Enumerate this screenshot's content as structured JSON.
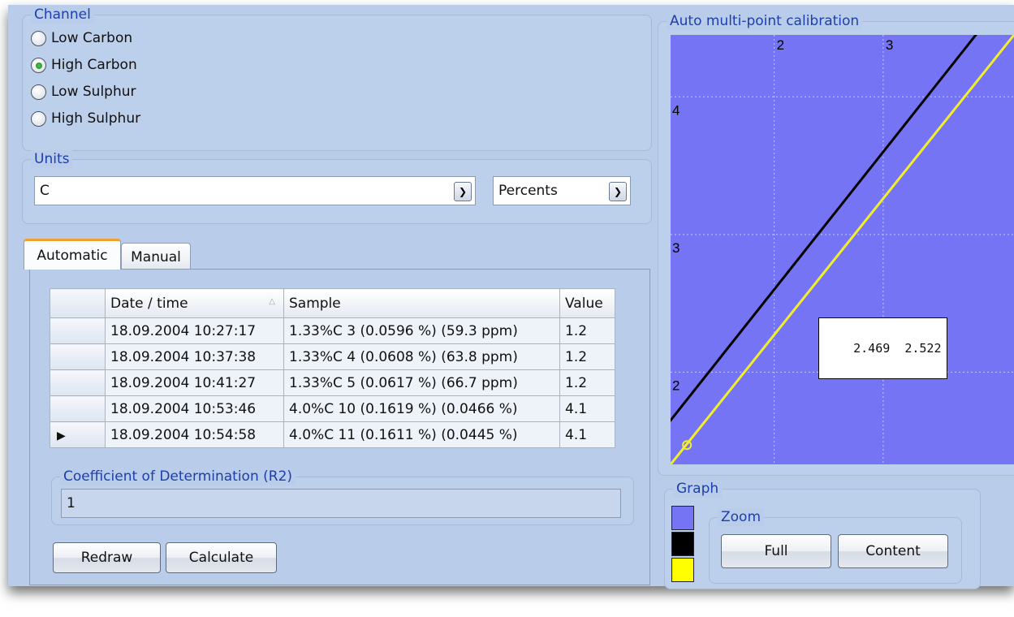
{
  "channel": {
    "title": "Channel",
    "options": [
      {
        "label": "Low Carbon",
        "checked": false
      },
      {
        "label": "High Carbon",
        "checked": true
      },
      {
        "label": "Low Sulphur",
        "checked": false
      },
      {
        "label": "High Sulphur",
        "checked": false
      }
    ]
  },
  "units": {
    "title": "Units",
    "element_value": "C",
    "unit_value": "Percents"
  },
  "tabs": [
    {
      "label": "Automatic",
      "active": true
    },
    {
      "label": "Manual",
      "active": false
    }
  ],
  "table": {
    "columns": [
      "Date / time",
      "Sample",
      "Value"
    ],
    "rows": [
      {
        "datetime": "18.09.2004 10:27:17",
        "sample": "1.33%C 3 (0.0596 %) (59.3 ppm)",
        "value": "1.2",
        "current": false
      },
      {
        "datetime": "18.09.2004 10:37:38",
        "sample": "1.33%C 4 (0.0608 %) (63.8 ppm)",
        "value": "1.2",
        "current": false
      },
      {
        "datetime": "18.09.2004 10:41:27",
        "sample": "1.33%C 5 (0.0617 %) (66.7 ppm)",
        "value": "1.2",
        "current": false
      },
      {
        "datetime": "18.09.2004 10:53:46",
        "sample": "4.0%C 10 (0.1619 %) (0.0466 %)",
        "value": "4.1",
        "current": false
      },
      {
        "datetime": "18.09.2004 10:54:58",
        "sample": "4.0%C 11 (0.1611 %) (0.0445 %)",
        "value": "4.1",
        "current": true
      }
    ]
  },
  "r2": {
    "title": "Coefficient of Determination (R2)",
    "value": "1"
  },
  "buttons": {
    "redraw": "Redraw",
    "calculate": "Calculate"
  },
  "calibration": {
    "title": "Auto multi-point calibration",
    "x_ticks": [
      "2",
      "3"
    ],
    "y_ticks": [
      "4",
      "3",
      "2"
    ],
    "tooltip": "2.469  2.522",
    "colors": {
      "background": "#7474f4",
      "black_line": "#000000",
      "yellow_line": "#f2ee2a",
      "grid": "#c8c8ff"
    }
  },
  "chart_data": {
    "type": "line",
    "title": "Auto multi-point calibration",
    "xlim": [
      1.05,
      4.2
    ],
    "ylim": [
      1.33,
      4.45
    ],
    "x_ticks": [
      2,
      3
    ],
    "y_ticks": [
      2,
      3,
      4
    ],
    "grid": true,
    "series": [
      {
        "color": "#000000",
        "points": [
          [
            1.0,
            1.6
          ],
          [
            4.2,
            4.8
          ]
        ]
      },
      {
        "color": "#f2ee2a",
        "points": [
          [
            1.0,
            1.28
          ],
          [
            4.2,
            4.45
          ]
        ]
      }
    ],
    "marker": {
      "x": 1.2,
      "y": 1.47
    },
    "annotation": "2.469  2.522"
  },
  "graph": {
    "title": "Graph",
    "swatches": [
      "#7474f4",
      "#000000",
      "#ffff00"
    ],
    "zoom_title": "Zoom",
    "full_label": "Full",
    "content_label": "Content"
  }
}
